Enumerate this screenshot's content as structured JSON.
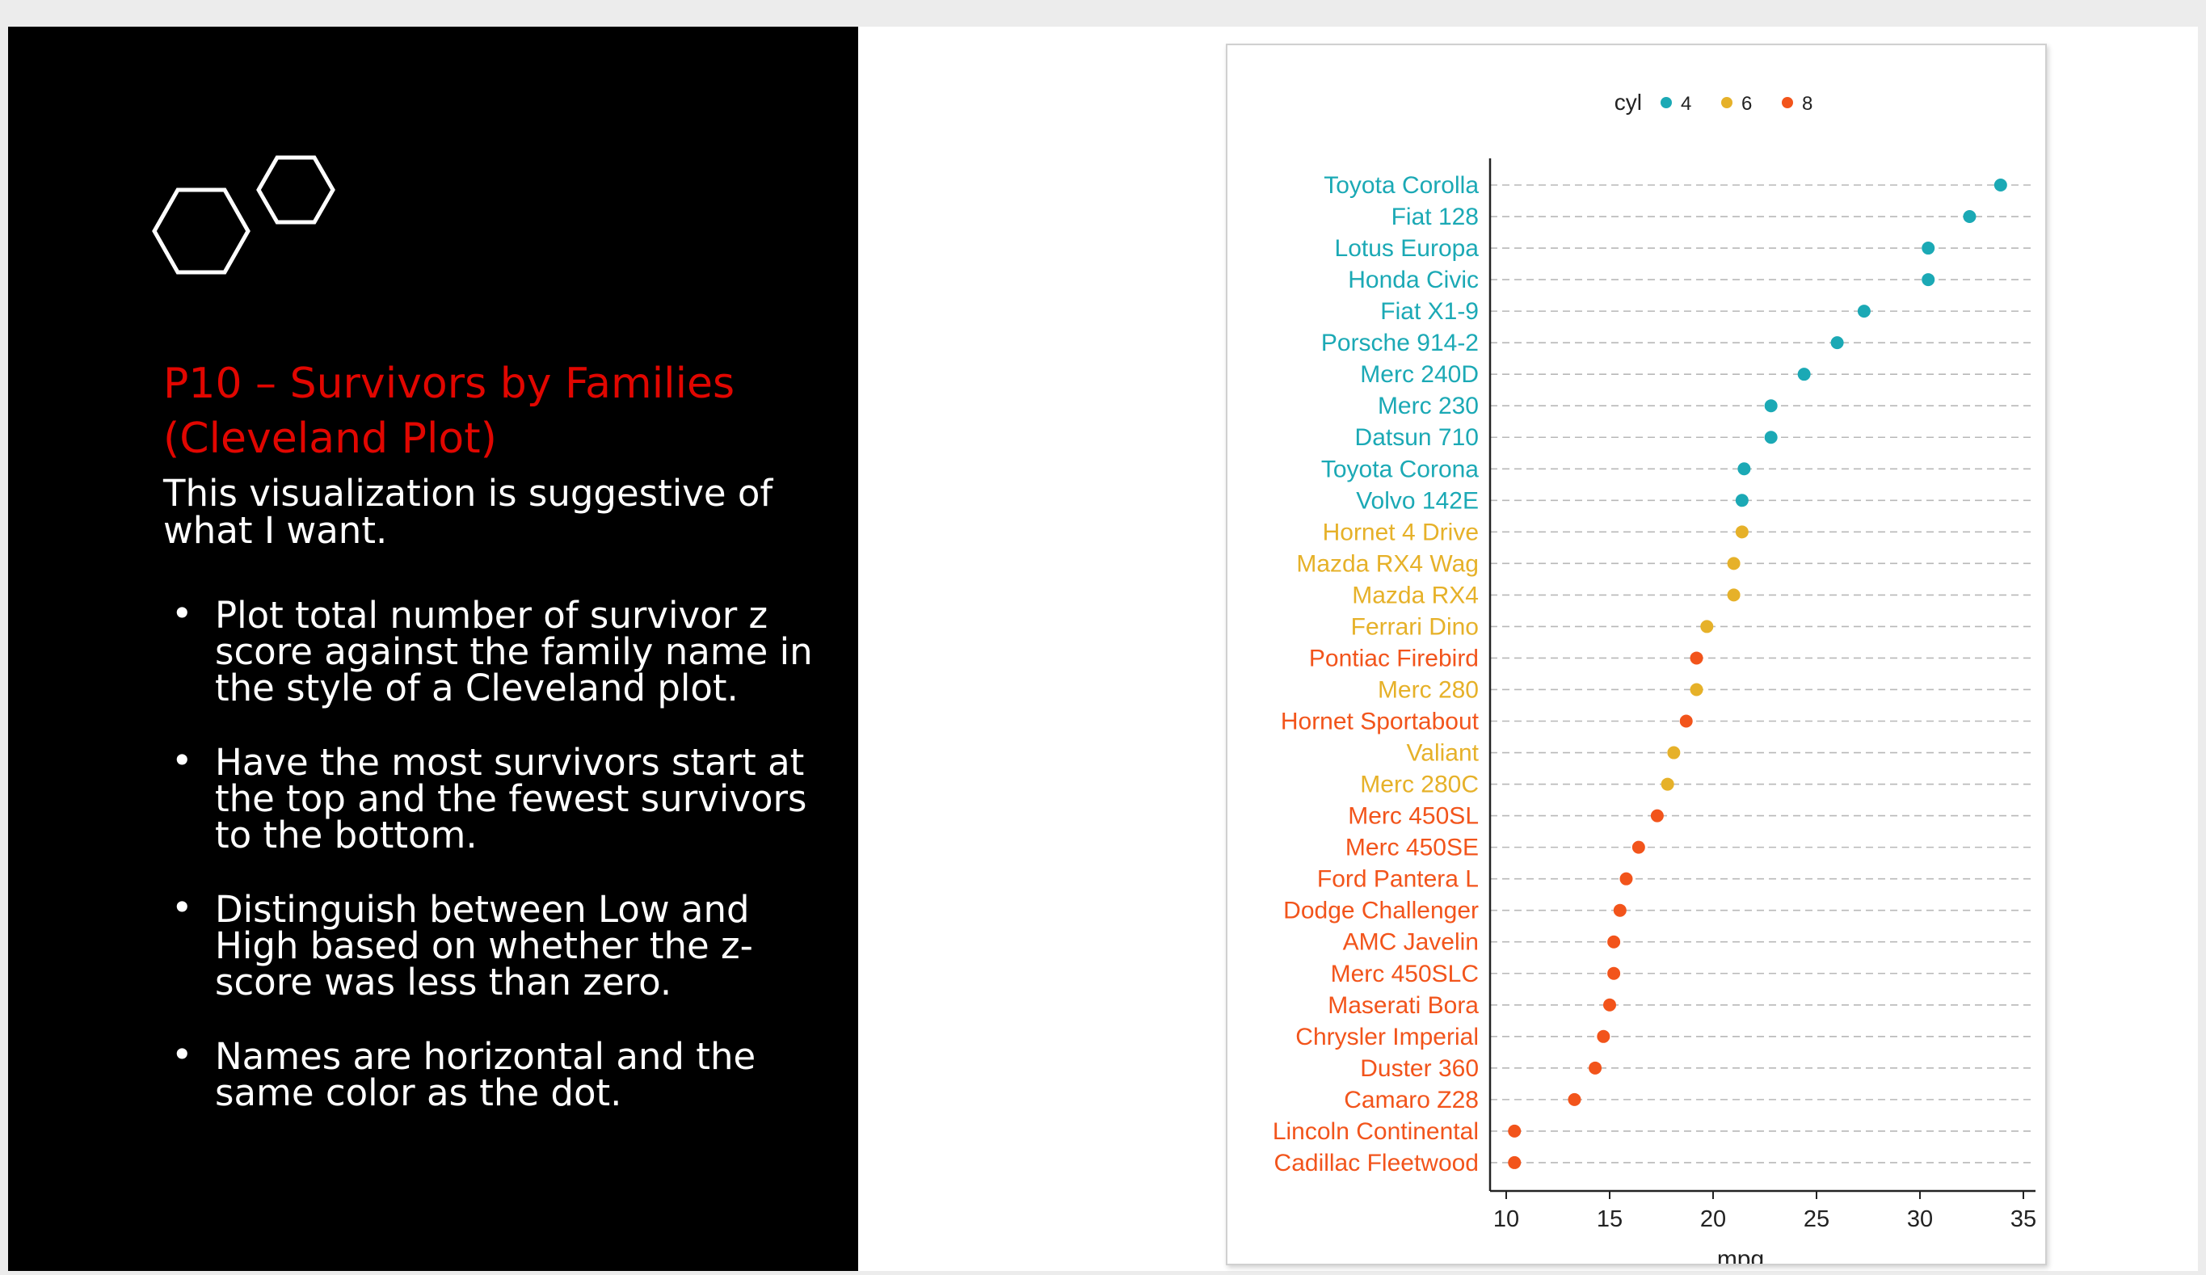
{
  "slide": {
    "title": "P10 – Survivors by Families\n(Cleveland Plot)",
    "intro": "This visualization is suggestive of what I want.",
    "bullets": [
      "Plot total number of survivor z score against the family name in the style of a Cleveland plot.",
      "Have the most survivors start at the top and the fewest survivors to the bottom.",
      "Distinguish between Low and High based on whether the z-score was less than zero.",
      "Names are horizontal and the same color as the dot."
    ],
    "bullet_glyph": "•",
    "logo_icon": "hexagons-icon",
    "title_color": "#e10600"
  },
  "chart_data": {
    "type": "scatter",
    "subtype": "cleveland-dot",
    "title": "",
    "xlabel": "mpg",
    "ylabel": "",
    "xlim": [
      10,
      35
    ],
    "xticks": [
      10,
      15,
      20,
      25,
      30,
      35
    ],
    "grid": "horizontal dashed",
    "legend": {
      "title": "cyl",
      "position": "top",
      "entries": [
        {
          "label": "4",
          "color": "#1ba9b5"
        },
        {
          "label": "6",
          "color": "#e6b129"
        },
        {
          "label": "8",
          "color": "#f2541b"
        }
      ]
    },
    "points": [
      {
        "name": "Toyota Corolla",
        "mpg": 33.9,
        "cyl": "4"
      },
      {
        "name": "Fiat 128",
        "mpg": 32.4,
        "cyl": "4"
      },
      {
        "name": "Lotus Europa",
        "mpg": 30.4,
        "cyl": "4"
      },
      {
        "name": "Honda Civic",
        "mpg": 30.4,
        "cyl": "4"
      },
      {
        "name": "Fiat X1-9",
        "mpg": 27.3,
        "cyl": "4"
      },
      {
        "name": "Porsche 914-2",
        "mpg": 26.0,
        "cyl": "4"
      },
      {
        "name": "Merc 240D",
        "mpg": 24.4,
        "cyl": "4"
      },
      {
        "name": "Merc 230",
        "mpg": 22.8,
        "cyl": "4"
      },
      {
        "name": "Datsun 710",
        "mpg": 22.8,
        "cyl": "4"
      },
      {
        "name": "Toyota Corona",
        "mpg": 21.5,
        "cyl": "4"
      },
      {
        "name": "Volvo 142E",
        "mpg": 21.4,
        "cyl": "4"
      },
      {
        "name": "Hornet 4 Drive",
        "mpg": 21.4,
        "cyl": "6"
      },
      {
        "name": "Mazda RX4 Wag",
        "mpg": 21.0,
        "cyl": "6"
      },
      {
        "name": "Mazda RX4",
        "mpg": 21.0,
        "cyl": "6"
      },
      {
        "name": "Ferrari Dino",
        "mpg": 19.7,
        "cyl": "6"
      },
      {
        "name": "Pontiac Firebird",
        "mpg": 19.2,
        "cyl": "8"
      },
      {
        "name": "Merc 280",
        "mpg": 19.2,
        "cyl": "6"
      },
      {
        "name": "Hornet Sportabout",
        "mpg": 18.7,
        "cyl": "8"
      },
      {
        "name": "Valiant",
        "mpg": 18.1,
        "cyl": "6"
      },
      {
        "name": "Merc 280C",
        "mpg": 17.8,
        "cyl": "6"
      },
      {
        "name": "Merc 450SL",
        "mpg": 17.3,
        "cyl": "8"
      },
      {
        "name": "Merc 450SE",
        "mpg": 16.4,
        "cyl": "8"
      },
      {
        "name": "Ford Pantera L",
        "mpg": 15.8,
        "cyl": "8"
      },
      {
        "name": "Dodge Challenger",
        "mpg": 15.5,
        "cyl": "8"
      },
      {
        "name": "AMC Javelin",
        "mpg": 15.2,
        "cyl": "8"
      },
      {
        "name": "Merc 450SLC",
        "mpg": 15.2,
        "cyl": "8"
      },
      {
        "name": "Maserati Bora",
        "mpg": 15.0,
        "cyl": "8"
      },
      {
        "name": "Chrysler Imperial",
        "mpg": 14.7,
        "cyl": "8"
      },
      {
        "name": "Duster 360",
        "mpg": 14.3,
        "cyl": "8"
      },
      {
        "name": "Camaro Z28",
        "mpg": 13.3,
        "cyl": "8"
      },
      {
        "name": "Lincoln Continental",
        "mpg": 10.4,
        "cyl": "8"
      },
      {
        "name": "Cadillac Fleetwood",
        "mpg": 10.4,
        "cyl": "8"
      }
    ]
  }
}
